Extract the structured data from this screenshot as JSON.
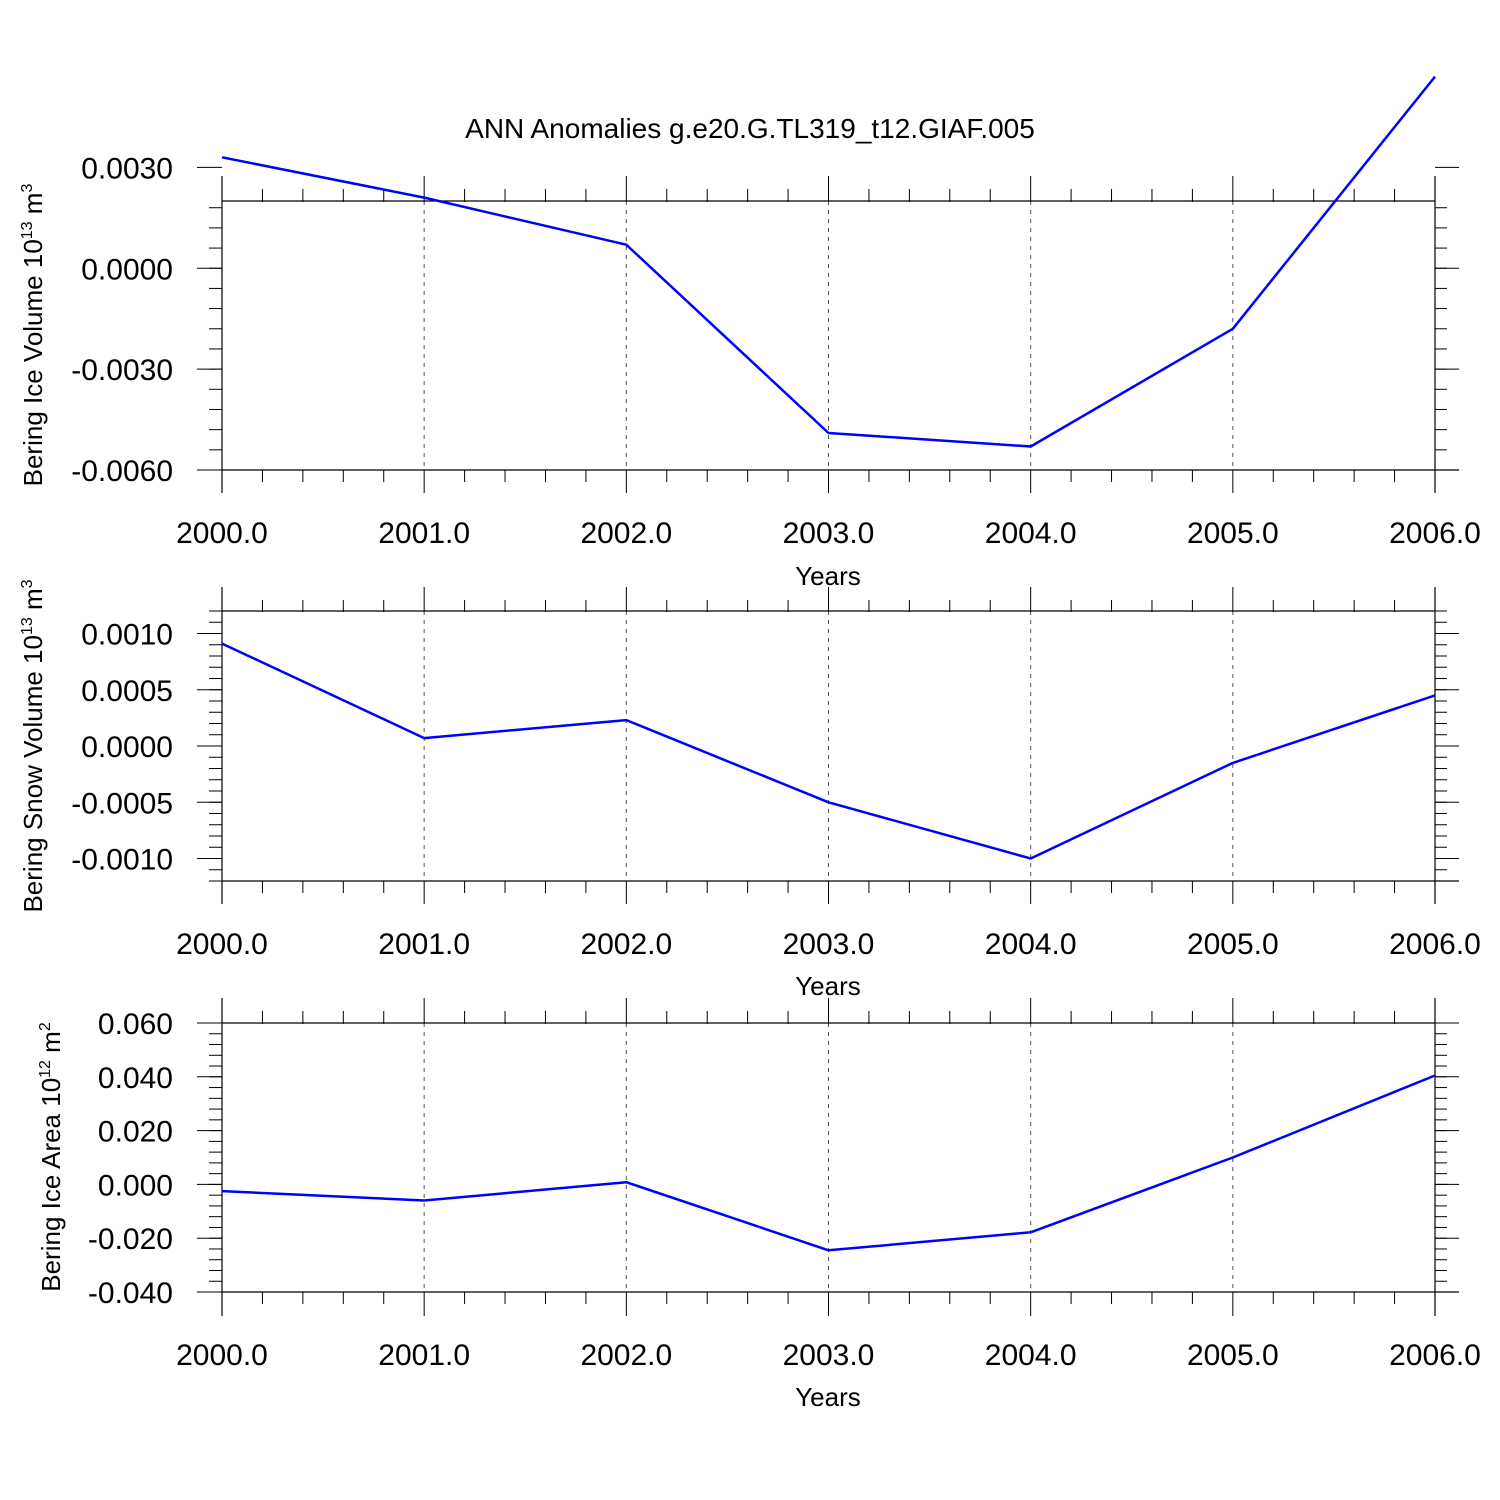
{
  "figure": {
    "title": "ANN Anomalies g.e20.G.TL319_t12.GIAF.005"
  },
  "colors": {
    "line": "#0000ff",
    "grid": "#555555",
    "axis": "#000000"
  },
  "chart_data": [
    {
      "type": "line",
      "title": "",
      "xlabel": "Years",
      "ylabel": {
        "base": "Bering Ice Volume 10",
        "exp": "13",
        "unit": " m",
        "unit_exp": "3"
      },
      "xlim": [
        2000,
        2006
      ],
      "ylim": [
        -0.006,
        0.002
      ],
      "x_ticks": [
        2000,
        2001,
        2002,
        2003,
        2004,
        2005,
        2006
      ],
      "x_tick_labels": [
        "2000.0",
        "2001.0",
        "2002.0",
        "2003.0",
        "2004.0",
        "2005.0",
        "2006.0"
      ],
      "y_ticks": [
        -0.006,
        -0.003,
        0.0,
        0.003
      ],
      "y_tick_labels": [
        "-0.0060",
        "-0.0030",
        "0.0000",
        "0.0030"
      ],
      "y_minor_step": 0.0006,
      "grid": "vertical dashed at major x ticks",
      "x": [
        2000,
        2001,
        2002,
        2003,
        2004,
        2005,
        2006
      ],
      "values": [
        0.0033,
        0.0021,
        0.0007,
        -0.0049,
        -0.0053,
        -0.0018,
        0.0057
      ]
    },
    {
      "type": "line",
      "title": "",
      "xlabel": "Years",
      "ylabel": {
        "base": "Bering Snow Volume 10",
        "exp": "13",
        "unit": " m",
        "unit_exp": "3"
      },
      "xlim": [
        2000,
        2006
      ],
      "ylim": [
        -0.0012,
        0.0012
      ],
      "x_ticks": [
        2000,
        2001,
        2002,
        2003,
        2004,
        2005,
        2006
      ],
      "x_tick_labels": [
        "2000.0",
        "2001.0",
        "2002.0",
        "2003.0",
        "2004.0",
        "2005.0",
        "2006.0"
      ],
      "y_ticks": [
        -0.001,
        -0.0005,
        0.0,
        0.0005,
        0.001
      ],
      "y_tick_labels": [
        "-0.0010",
        "-0.0005",
        "0.0000",
        "0.0005",
        "0.0010"
      ],
      "y_minor_step": 0.0001,
      "grid": "vertical dashed at major x ticks",
      "x": [
        2000,
        2001,
        2002,
        2003,
        2004,
        2005,
        2006
      ],
      "values": [
        0.00091,
        7e-05,
        0.00023,
        -0.0005,
        -0.001,
        -0.00015,
        0.00045
      ]
    },
    {
      "type": "line",
      "title": "",
      "xlabel": "Years",
      "ylabel": {
        "base": "Bering Ice Area 10",
        "exp": "12",
        "unit": " m",
        "unit_exp": "2"
      },
      "xlim": [
        2000,
        2006
      ],
      "ylim": [
        -0.04,
        0.06
      ],
      "x_ticks": [
        2000,
        2001,
        2002,
        2003,
        2004,
        2005,
        2006
      ],
      "x_tick_labels": [
        "2000.0",
        "2001.0",
        "2002.0",
        "2003.0",
        "2004.0",
        "2005.0",
        "2006.0"
      ],
      "y_ticks": [
        -0.04,
        -0.02,
        0.0,
        0.02,
        0.04,
        0.06
      ],
      "y_tick_labels": [
        "-0.040",
        "-0.020",
        "0.000",
        "0.020",
        "0.040",
        "0.060"
      ],
      "y_minor_step": 0.004,
      "grid": "vertical dashed at major x ticks",
      "x": [
        2000,
        2001,
        2002,
        2003,
        2004,
        2005,
        2006
      ],
      "values": [
        -0.0025,
        -0.006,
        0.0008,
        -0.0245,
        -0.0178,
        0.01,
        0.0405
      ]
    }
  ]
}
